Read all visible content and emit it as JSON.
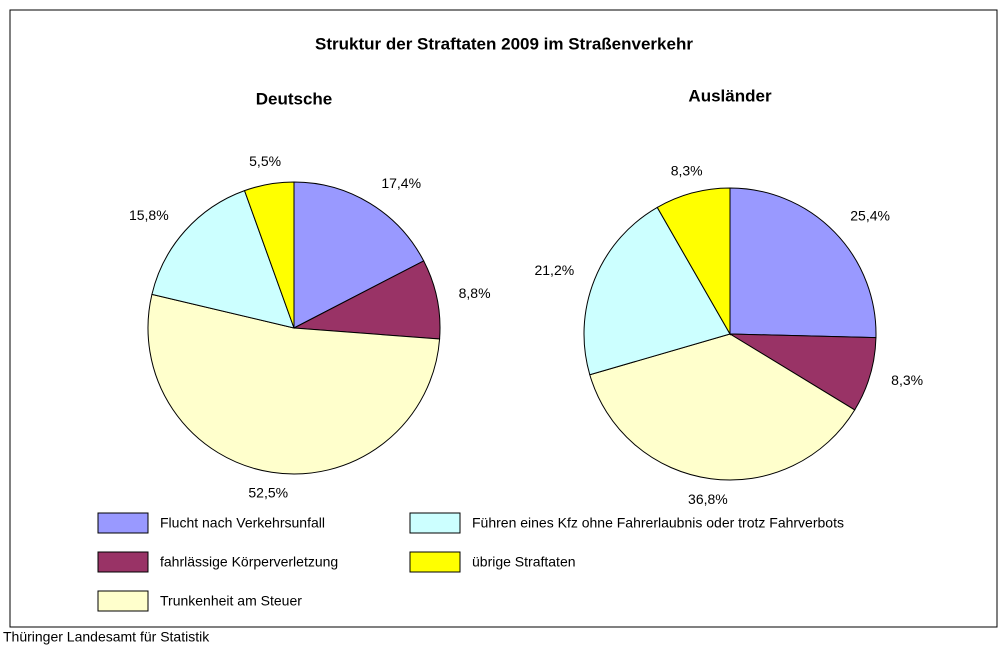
{
  "title": "Struktur der Straftaten 2009 im Straßenverkehr",
  "source": "Thüringer Landesamt für Statistik",
  "chart_data": [
    {
      "type": "pie",
      "title": "Deutsche",
      "categories": [
        "Flucht nach Verkehrsunfall",
        "fahrlässige Körperverletzung",
        "Trunkenheit am Steuer",
        "Führen eines Kfz ohne Fahrerlaubnis oder trotz Fahrverbots",
        "übrige Straftaten"
      ],
      "values": [
        17.4,
        8.8,
        52.5,
        15.8,
        5.5
      ],
      "value_labels": [
        "17,4%",
        "8,8%",
        "52,5%",
        "15,8%",
        "5,5%"
      ],
      "colors": [
        "#9999ff",
        "#993366",
        "#ffffcc",
        "#ccffff",
        "#ffff00"
      ]
    },
    {
      "type": "pie",
      "title": "Ausländer",
      "categories": [
        "Flucht nach Verkehrsunfall",
        "fahrlässige Körperverletzung",
        "Trunkenheit am Steuer",
        "Führen eines Kfz ohne Fahrerlaubnis oder trotz Fahrverbots",
        "übrige Straftaten"
      ],
      "values": [
        25.4,
        8.3,
        36.8,
        21.2,
        8.3
      ],
      "value_labels": [
        "25,4%",
        "8,3%",
        "36,8%",
        "21,2%",
        "8,3%"
      ],
      "colors": [
        "#9999ff",
        "#993366",
        "#ffffcc",
        "#ccffff",
        "#ffff00"
      ]
    }
  ]
}
